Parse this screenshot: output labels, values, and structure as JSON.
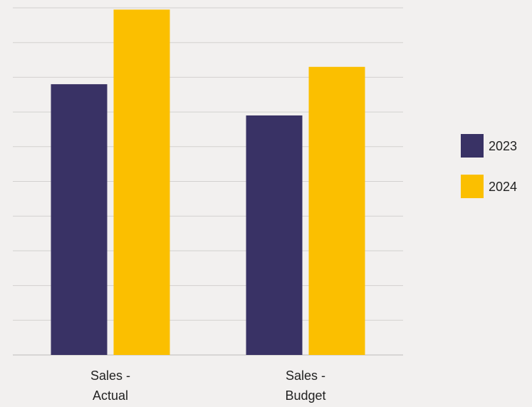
{
  "chart_data": {
    "type": "bar",
    "categories": [
      [
        "Sales -",
        "Actual"
      ],
      [
        "Sales -",
        "Budget"
      ]
    ],
    "series": [
      {
        "name": "2023",
        "values": [
          7.8,
          6.9
        ],
        "color": "#393265"
      },
      {
        "name": "2024",
        "values": [
          9.95,
          8.3
        ],
        "color": "#fbbf00"
      }
    ],
    "ylim": [
      0,
      10
    ],
    "gridlines": 10,
    "grid": true,
    "legend": "right"
  }
}
